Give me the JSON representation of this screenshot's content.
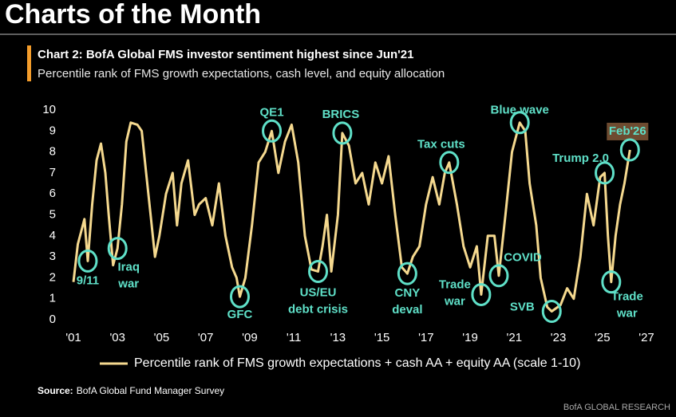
{
  "header": {
    "title": "Charts of the Month"
  },
  "chart_data": {
    "type": "line",
    "title": "Chart 2: BofA Global FMS investor sentiment highest since Jun'21",
    "subtitle": "Percentile rank of FMS growth expectations, cash level, and equity allocation",
    "x": [
      2001.0,
      2001.2,
      2001.35,
      2001.5,
      2001.65,
      2001.85,
      2002.05,
      2002.25,
      2002.45,
      2002.6,
      2002.8,
      2003.0,
      2003.2,
      2003.4,
      2003.6,
      2003.9,
      2004.1,
      2004.3,
      2004.5,
      2004.7,
      2004.9,
      2005.2,
      2005.5,
      2005.7,
      2005.9,
      2006.2,
      2006.5,
      2006.7,
      2007.0,
      2007.3,
      2007.6,
      2007.9,
      2008.2,
      2008.4,
      2008.55,
      2008.8,
      2009.1,
      2009.4,
      2009.7,
      2010.0,
      2010.3,
      2010.6,
      2010.9,
      2011.2,
      2011.5,
      2011.8,
      2012.1,
      2012.3,
      2012.5,
      2012.7,
      2013.0,
      2013.2,
      2013.5,
      2013.8,
      2014.1,
      2014.4,
      2014.7,
      2015.0,
      2015.3,
      2015.6,
      2015.9,
      2016.15,
      2016.4,
      2016.7,
      2017.0,
      2017.3,
      2017.6,
      2017.85,
      2018.05,
      2018.4,
      2018.7,
      2019.0,
      2019.3,
      2019.5,
      2019.8,
      2020.1,
      2020.3,
      2020.6,
      2020.9,
      2021.25,
      2021.5,
      2021.7,
      2022.0,
      2022.2,
      2022.5,
      2022.7,
      2023.1,
      2023.4,
      2023.7,
      2024.0,
      2024.3,
      2024.6,
      2024.9,
      2025.1,
      2025.25,
      2025.4,
      2025.6,
      2025.8,
      2026.0,
      2026.25
    ],
    "series": [
      {
        "name": "Percentile rank of FMS growth expectations + cash AA + equity AA (scale 1-10)",
        "color": "#f5d98f",
        "values": [
          1.8,
          3.6,
          4.2,
          4.8,
          2.8,
          5.5,
          7.6,
          8.4,
          7.0,
          5.0,
          2.6,
          3.4,
          5.5,
          8.5,
          9.4,
          9.3,
          9.0,
          7.0,
          5.0,
          3.0,
          4.0,
          6.0,
          7.0,
          4.5,
          6.5,
          7.6,
          5.0,
          5.5,
          5.8,
          4.5,
          6.5,
          4.0,
          2.5,
          2.0,
          1.1,
          2.0,
          4.5,
          7.5,
          8.0,
          9.0,
          7.0,
          8.5,
          9.3,
          7.5,
          4.0,
          2.4,
          2.3,
          3.5,
          5.0,
          2.3,
          5.0,
          8.9,
          8.3,
          6.5,
          7.0,
          5.5,
          7.5,
          6.5,
          7.8,
          5.0,
          2.5,
          2.2,
          3.0,
          3.5,
          5.5,
          6.8,
          5.5,
          7.0,
          7.5,
          5.5,
          3.5,
          2.5,
          3.5,
          1.2,
          4.0,
          4.0,
          2.1,
          5.0,
          8.0,
          9.4,
          9.0,
          6.5,
          4.5,
          2.0,
          0.6,
          0.4,
          0.7,
          1.5,
          1.0,
          3.0,
          6.0,
          4.5,
          6.8,
          7.0,
          4.0,
          1.8,
          4.0,
          5.5,
          6.5,
          8.1
        ]
      }
    ],
    "xlim": [
      2001,
      2027
    ],
    "xticks": [
      {
        "value": 2001,
        "label": "'01"
      },
      {
        "value": 2003,
        "label": "'03"
      },
      {
        "value": 2005,
        "label": "'05"
      },
      {
        "value": 2007,
        "label": "'07"
      },
      {
        "value": 2009,
        "label": "'09"
      },
      {
        "value": 2011,
        "label": "'11"
      },
      {
        "value": 2013,
        "label": "'13"
      },
      {
        "value": 2015,
        "label": "'15"
      },
      {
        "value": 2017,
        "label": "'17"
      },
      {
        "value": 2019,
        "label": "'19"
      },
      {
        "value": 2021,
        "label": "'21"
      },
      {
        "value": 2023,
        "label": "'23"
      },
      {
        "value": 2025,
        "label": "'25"
      },
      {
        "value": 2027,
        "label": "'27"
      }
    ],
    "ylim": [
      0,
      10
    ],
    "yticks": [
      0,
      1,
      2,
      3,
      4,
      5,
      6,
      7,
      8,
      9,
      10
    ],
    "annotation_color": "#5fe0c8",
    "annotations": [
      {
        "lines": [
          "9/11"
        ],
        "x": 2001.65,
        "y": 2.8
      },
      {
        "lines": [
          "Iraq",
          "war"
        ],
        "x": 2003.0,
        "y": 3.4
      },
      {
        "lines": [
          "GFC"
        ],
        "x": 2008.55,
        "y": 1.1
      },
      {
        "lines": [
          "QE1"
        ],
        "x": 2010.0,
        "y": 9.0
      },
      {
        "lines": [
          "US/EU",
          "debt crisis"
        ],
        "x": 2012.1,
        "y": 2.3
      },
      {
        "lines": [
          "BRICS"
        ],
        "x": 2013.2,
        "y": 8.9
      },
      {
        "lines": [
          "CNY",
          "deval"
        ],
        "x": 2016.15,
        "y": 2.2
      },
      {
        "lines": [
          "Tax cuts"
        ],
        "x": 2018.05,
        "y": 7.5
      },
      {
        "lines": [
          "Trade",
          "war"
        ],
        "x": 2019.5,
        "y": 1.2
      },
      {
        "lines": [
          "COVID"
        ],
        "x": 2020.3,
        "y": 2.1
      },
      {
        "lines": [
          "Blue wave"
        ],
        "x": 2021.25,
        "y": 9.4
      },
      {
        "lines": [
          "SVB"
        ],
        "x": 2022.7,
        "y": 0.4
      },
      {
        "lines": [
          "Trump 2.0"
        ],
        "x": 2025.1,
        "y": 7.0
      },
      {
        "lines": [
          "Trade",
          "war"
        ],
        "x": 2025.4,
        "y": 1.8
      },
      {
        "lines": [
          "Feb'26"
        ],
        "x": 2026.25,
        "y": 8.1,
        "box_color": "#6e4b30"
      }
    ]
  },
  "footer": {
    "source_label": "Source:",
    "source": "BofA Global Fund Manager Survey",
    "brand": "BofA GLOBAL RESEARCH"
  }
}
